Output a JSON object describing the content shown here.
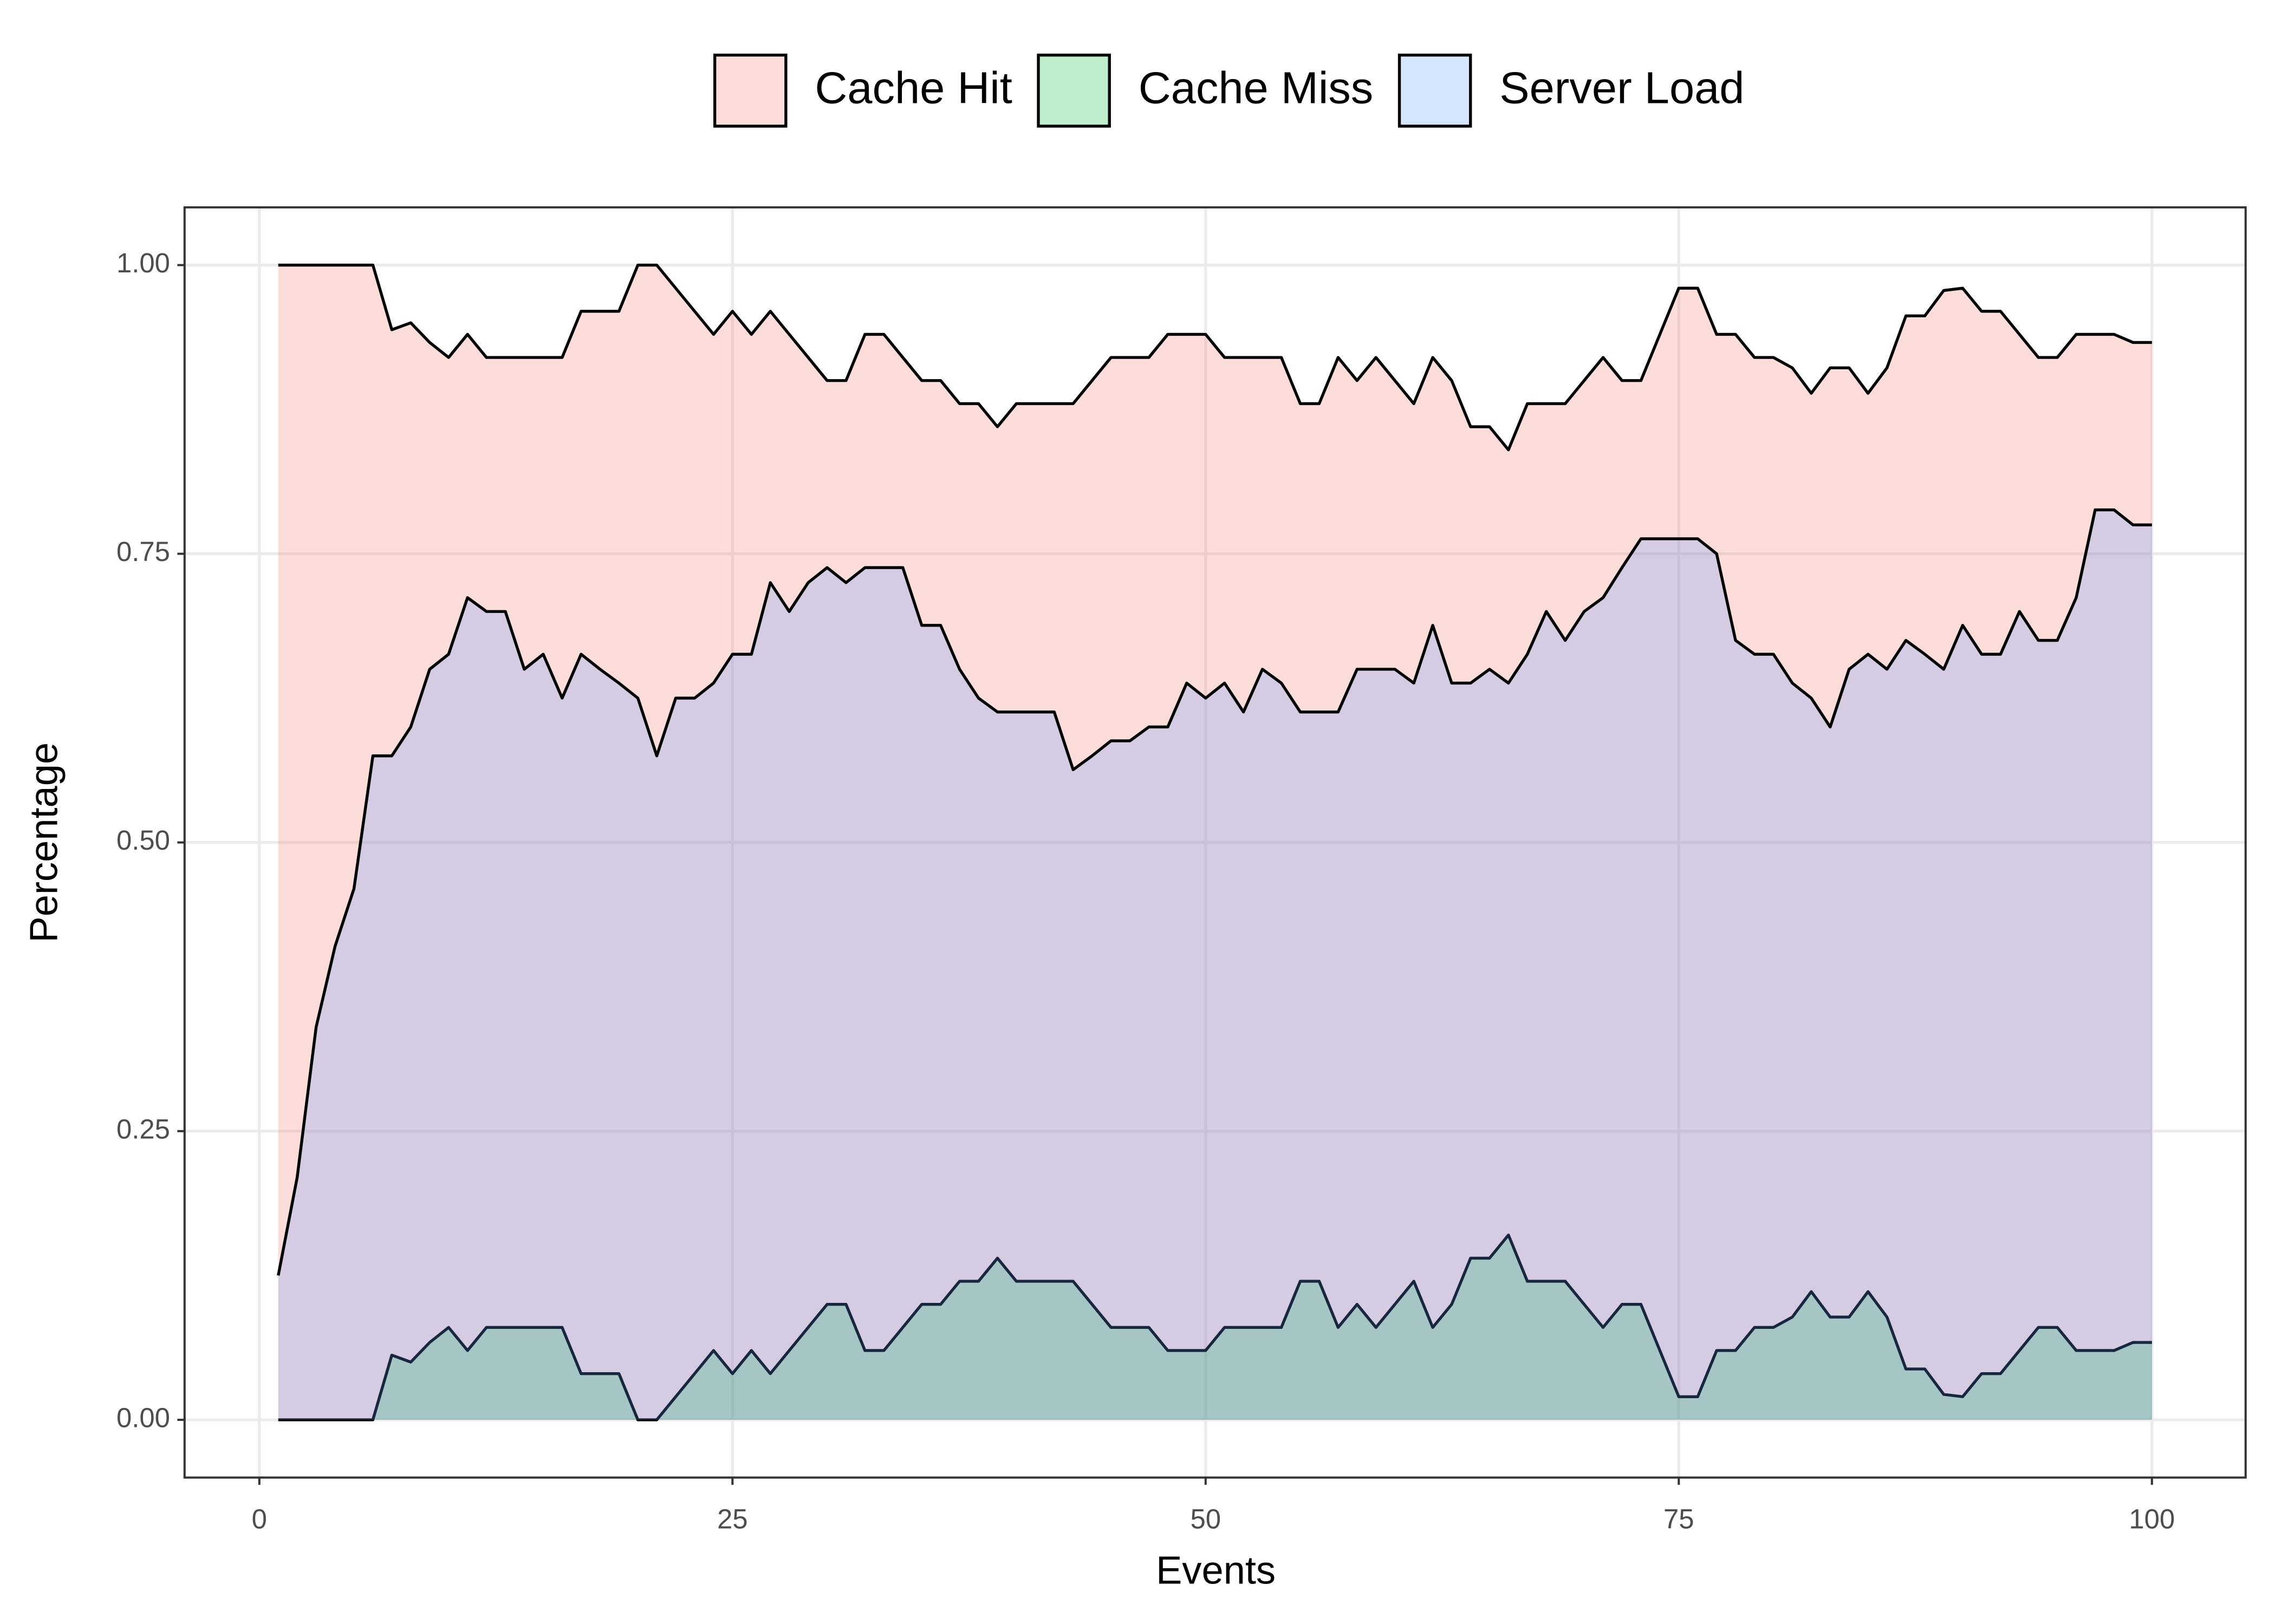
{
  "chart_data": {
    "type": "area",
    "x_label": "Events",
    "y_label": "Percentage",
    "x": [
      1,
      2,
      3,
      4,
      5,
      6,
      7,
      8,
      9,
      10,
      11,
      12,
      13,
      14,
      15,
      16,
      17,
      18,
      19,
      20,
      21,
      22,
      23,
      24,
      25,
      26,
      27,
      28,
      29,
      30,
      31,
      32,
      33,
      34,
      35,
      36,
      37,
      38,
      39,
      40,
      41,
      42,
      43,
      44,
      45,
      46,
      47,
      48,
      49,
      50,
      51,
      52,
      53,
      54,
      55,
      56,
      57,
      58,
      59,
      60,
      61,
      62,
      63,
      64,
      65,
      66,
      67,
      68,
      69,
      70,
      71,
      72,
      73,
      74,
      75,
      76,
      77,
      78,
      79,
      80,
      81,
      82,
      83,
      84,
      85,
      86,
      87,
      88,
      89,
      90,
      91,
      92,
      93,
      94,
      95,
      96,
      97,
      98,
      99,
      100
    ],
    "series": [
      {
        "name": "Cache Hit",
        "color": "#F8766D",
        "values": [
          1.0,
          1.0,
          1.0,
          1.0,
          1.0,
          1.0,
          0.944,
          0.95,
          0.933,
          0.92,
          0.94,
          0.92,
          0.92,
          0.92,
          0.92,
          0.92,
          0.96,
          0.96,
          0.96,
          1.0,
          1.0,
          0.98,
          0.96,
          0.94,
          0.96,
          0.94,
          0.96,
          0.94,
          0.92,
          0.9,
          0.9,
          0.94,
          0.94,
          0.92,
          0.9,
          0.9,
          0.88,
          0.88,
          0.86,
          0.88,
          0.88,
          0.88,
          0.88,
          0.9,
          0.92,
          0.92,
          0.92,
          0.94,
          0.94,
          0.94,
          0.92,
          0.92,
          0.92,
          0.92,
          0.88,
          0.88,
          0.92,
          0.9,
          0.92,
          0.9,
          0.88,
          0.92,
          0.9,
          0.86,
          0.86,
          0.84,
          0.88,
          0.88,
          0.88,
          0.9,
          0.92,
          0.9,
          0.9,
          0.94,
          0.98,
          0.98,
          0.94,
          0.94,
          0.92,
          0.92,
          0.911,
          0.889,
          0.911,
          0.911,
          0.889,
          0.911,
          0.956,
          0.956,
          0.978,
          0.98,
          0.96,
          0.96,
          0.94,
          0.92,
          0.92,
          0.94,
          0.94,
          0.94,
          0.933,
          0.933
        ]
      },
      {
        "name": "Cache Miss",
        "color": "#00BA38",
        "values": [
          0,
          0,
          0,
          0,
          0,
          0,
          0.056,
          0.05,
          0.067,
          0.08,
          0.06,
          0.08,
          0.08,
          0.08,
          0.08,
          0.08,
          0.04,
          0.04,
          0.04,
          0,
          0,
          0.02,
          0.04,
          0.06,
          0.04,
          0.06,
          0.04,
          0.06,
          0.08,
          0.1,
          0.1,
          0.06,
          0.06,
          0.08,
          0.1,
          0.1,
          0.12,
          0.12,
          0.14,
          0.12,
          0.12,
          0.12,
          0.12,
          0.1,
          0.08,
          0.08,
          0.08,
          0.06,
          0.06,
          0.06,
          0.08,
          0.08,
          0.08,
          0.08,
          0.12,
          0.12,
          0.08,
          0.1,
          0.08,
          0.1,
          0.12,
          0.08,
          0.1,
          0.14,
          0.14,
          0.16,
          0.12,
          0.12,
          0.12,
          0.1,
          0.08,
          0.1,
          0.1,
          0.06,
          0.02,
          0.02,
          0.06,
          0.06,
          0.08,
          0.08,
          0.089,
          0.111,
          0.089,
          0.089,
          0.111,
          0.089,
          0.044,
          0.044,
          0.022,
          0.02,
          0.04,
          0.04,
          0.06,
          0.08,
          0.08,
          0.06,
          0.06,
          0.06,
          0.067,
          0.067
        ]
      },
      {
        "name": "Server Load",
        "color": "#619CFF",
        "values": [
          0.125,
          0.21,
          0.34,
          0.41,
          0.46,
          0.575,
          0.575,
          0.6,
          0.65,
          0.663,
          0.712,
          0.7,
          0.7,
          0.65,
          0.663,
          0.625,
          0.663,
          0.65,
          0.638,
          0.625,
          0.575,
          0.625,
          0.625,
          0.638,
          0.663,
          0.663,
          0.725,
          0.7,
          0.725,
          0.738,
          0.725,
          0.738,
          0.738,
          0.738,
          0.688,
          0.688,
          0.65,
          0.625,
          0.613,
          0.613,
          0.613,
          0.613,
          0.563,
          0.575,
          0.588,
          0.588,
          0.6,
          0.6,
          0.638,
          0.625,
          0.638,
          0.613,
          0.65,
          0.638,
          0.613,
          0.613,
          0.613,
          0.65,
          0.65,
          0.65,
          0.638,
          0.688,
          0.638,
          0.638,
          0.65,
          0.638,
          0.663,
          0.7,
          0.675,
          0.7,
          0.712,
          0.738,
          0.763,
          0.763,
          0.763,
          0.763,
          0.75,
          0.675,
          0.663,
          0.663,
          0.638,
          0.625,
          0.6,
          0.65,
          0.663,
          0.65,
          0.675,
          0.663,
          0.65,
          0.688,
          0.663,
          0.663,
          0.7,
          0.675,
          0.675,
          0.712,
          0.788,
          0.788,
          0.775,
          0.775
        ]
      }
    ],
    "fill_opacity": 0.25,
    "xlim": [
      -3.95,
      104.95
    ],
    "ylim": [
      -0.05,
      1.05
    ],
    "xticks": [
      0,
      25,
      50,
      75,
      100
    ],
    "yticks": [
      {
        "value": 0,
        "label": "0.00"
      },
      {
        "value": 0.25,
        "label": "0.25"
      },
      {
        "value": 0.5,
        "label": "0.50"
      },
      {
        "value": 0.75,
        "label": "0.75"
      },
      {
        "value": 1,
        "label": "1.00"
      }
    ],
    "grid": true,
    "legend": "top"
  }
}
